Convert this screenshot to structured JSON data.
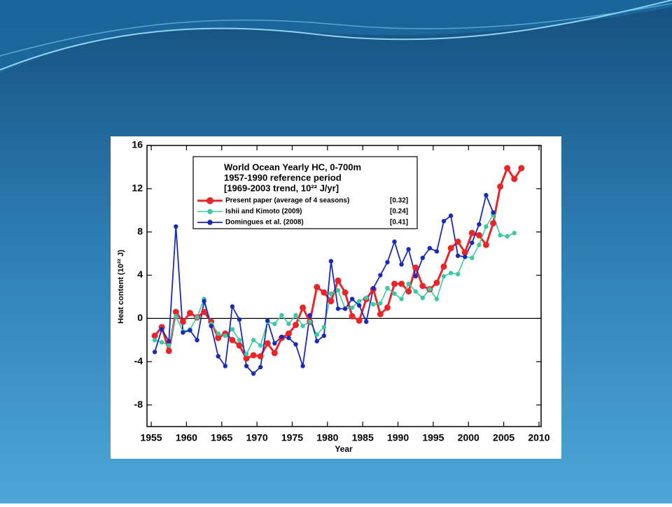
{
  "chart_data": {
    "type": "line",
    "legend_title": [
      "World Ocean Yearly  HC, 0-700m",
      "1957-1990 reference period",
      "[1969-2003 trend, 10²² J/yr]"
    ],
    "xlabel": "Year",
    "ylabel": "Heat content (10²² J)",
    "x": [
      1955.5,
      1956.5,
      1957.5,
      1958.5,
      1959.5,
      1960.5,
      1961.5,
      1962.5,
      1963.5,
      1964.5,
      1965.5,
      1966.5,
      1967.5,
      1968.5,
      1969.5,
      1970.5,
      1971.5,
      1972.5,
      1973.5,
      1974.5,
      1975.5,
      1976.5,
      1977.5,
      1978.5,
      1979.5,
      1980.5,
      1981.5,
      1982.5,
      1983.5,
      1984.5,
      1985.5,
      1986.5,
      1987.5,
      1988.5,
      1989.5,
      1990.5,
      1991.5,
      1992.5,
      1993.5,
      1994.5,
      1995.5,
      1996.5,
      1997.5,
      1998.5,
      1999.5,
      2000.5,
      2001.5,
      2002.5,
      2003.5,
      2004.5,
      2005.5,
      2006.5,
      2007.5
    ],
    "series": [
      {
        "name": "Present paper (average of 4 seasons)",
        "trend": "[0.32]",
        "color": "#e8262a",
        "values": [
          -1.6,
          -0.8,
          -3.0,
          0.6,
          -0.3,
          0.5,
          0.1,
          0.6,
          -0.3,
          -1.8,
          -1.4,
          -2.0,
          -2.5,
          -3.7,
          -3.4,
          -3.5,
          -2.3,
          -3.2,
          -1.8,
          -1.4,
          -0.6,
          1.0,
          -0.3,
          2.9,
          2.4,
          1.6,
          3.5,
          2.4,
          0.2,
          -0.2,
          1.8,
          2.7,
          0.4,
          1.0,
          3.2,
          3.2,
          2.5,
          4.7,
          3.0,
          2.7,
          3.3,
          4.8,
          6.5,
          7.1,
          6.1,
          7.9,
          7.7,
          6.8,
          8.8,
          12.2,
          13.9,
          12.9,
          13.9
        ]
      },
      {
        "name": "Ishii and Kimoto (2009)",
        "trend": "[0.24]",
        "color": "#3cc8a0",
        "values": [
          -2.0,
          -2.2,
          -2.5,
          0.2,
          -1.2,
          -1.0,
          0.1,
          1.8,
          -0.5,
          -1.4,
          -1.6,
          -1.0,
          -2.0,
          -3.3,
          -2.0,
          -2.5,
          -0.3,
          -0.5,
          0.3,
          -0.5,
          0.3,
          -0.7,
          -0.3,
          -1.5,
          -0.8,
          2.3,
          2.6,
          0.9,
          1.0,
          1.6,
          1.9,
          1.3,
          1.4,
          2.8,
          2.3,
          1.8,
          3.2,
          2.5,
          1.9,
          2.7,
          1.8,
          3.9,
          4.2,
          4.1,
          5.7,
          5.6,
          6.8,
          8.5,
          9.6,
          7.7,
          7.6,
          7.9,
          null
        ]
      },
      {
        "name": "Domingues et al. (2008)",
        "trend": "[0.41]",
        "color": "#1a2ab8",
        "values": [
          -3.1,
          -1.0,
          -2.1,
          8.5,
          -1.3,
          -1.1,
          -2.0,
          1.6,
          -0.7,
          -3.5,
          -4.4,
          1.1,
          -0.1,
          -4.4,
          -5.1,
          -4.5,
          -0.2,
          -2.3,
          -1.7,
          -1.8,
          -2.4,
          -4.4,
          0.3,
          -2.1,
          -1.6,
          5.3,
          0.9,
          0.9,
          1.8,
          1.2,
          -0.3,
          2.8,
          4.0,
          5.2,
          7.1,
          5.0,
          6.4,
          3.9,
          5.6,
          6.5,
          6.2,
          9.0,
          9.5,
          5.8,
          5.7,
          7.0,
          8.7,
          11.4,
          9.8,
          null,
          null,
          null,
          null
        ]
      }
    ],
    "xlim": [
      1954.4,
      2010.3
    ],
    "xticks": [
      1955,
      1960,
      1965,
      1970,
      1975,
      1980,
      1985,
      1990,
      1995,
      2000,
      2005,
      2010
    ],
    "ylim": [
      -10,
      16
    ],
    "yticks": [
      -8,
      -4,
      0,
      4,
      8,
      12,
      16
    ],
    "hline": 0
  }
}
